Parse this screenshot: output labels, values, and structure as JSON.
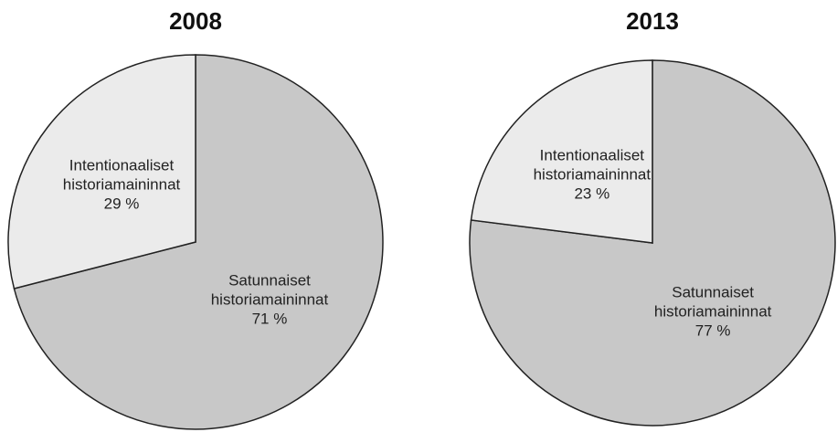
{
  "chart_data": [
    {
      "type": "pie",
      "title": "2008",
      "categories": [
        "Satunnaiset historiamaininnat",
        "Intentionaaliset historiamaininnat"
      ],
      "values": [
        71,
        29
      ],
      "value_labels": [
        "71 %",
        "29 %"
      ],
      "colors": [
        "#c8c8c8",
        "#ebebeb"
      ]
    },
    {
      "type": "pie",
      "title": "2013",
      "categories": [
        "Satunnaiset historiamaininnat",
        "Intentionaaliset historiamaininnat"
      ],
      "values": [
        77,
        23
      ],
      "value_labels": [
        "77 %",
        "23 %"
      ],
      "colors": [
        "#c8c8c8",
        "#ebebeb"
      ]
    }
  ]
}
